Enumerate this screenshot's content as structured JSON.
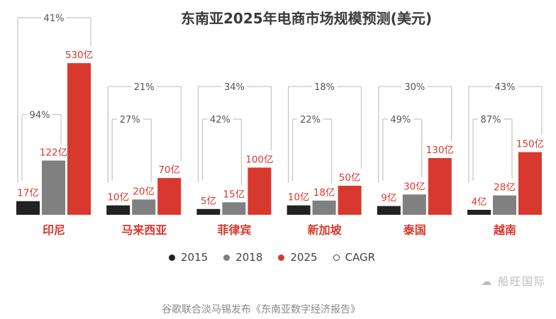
{
  "chart_data": {
    "type": "bar",
    "title": "东南亚2025年电商市场规模预测(美元)",
    "categories": [
      "印尼",
      "马来西亚",
      "菲律宾",
      "新加坡",
      "泰国",
      "越南"
    ],
    "unit_suffix": "亿",
    "series": [
      {
        "name": "2015",
        "color": "#222222",
        "values": [
          17,
          10,
          5,
          10,
          9,
          4
        ]
      },
      {
        "name": "2018",
        "color": "#808080",
        "values": [
          122,
          20,
          15,
          18,
          30,
          28
        ]
      },
      {
        "name": "2025",
        "color": "#d9382e",
        "values": [
          530,
          70,
          100,
          50,
          130,
          150
        ]
      }
    ],
    "cagr_2015_2018": [
      "94%",
      "27%",
      "42%",
      "22%",
      "49%",
      "87%"
    ],
    "cagr_2015_2025": [
      "41%",
      "21%",
      "34%",
      "18%",
      "30%",
      "43%"
    ],
    "legend": [
      "2015",
      "2018",
      "2025",
      "CAGR"
    ],
    "legend_placement": "bottom",
    "grid": false
  },
  "watermark": "船旺国际",
  "source": "谷歌联合淡马锡发布《东南亚数字经济报告》"
}
